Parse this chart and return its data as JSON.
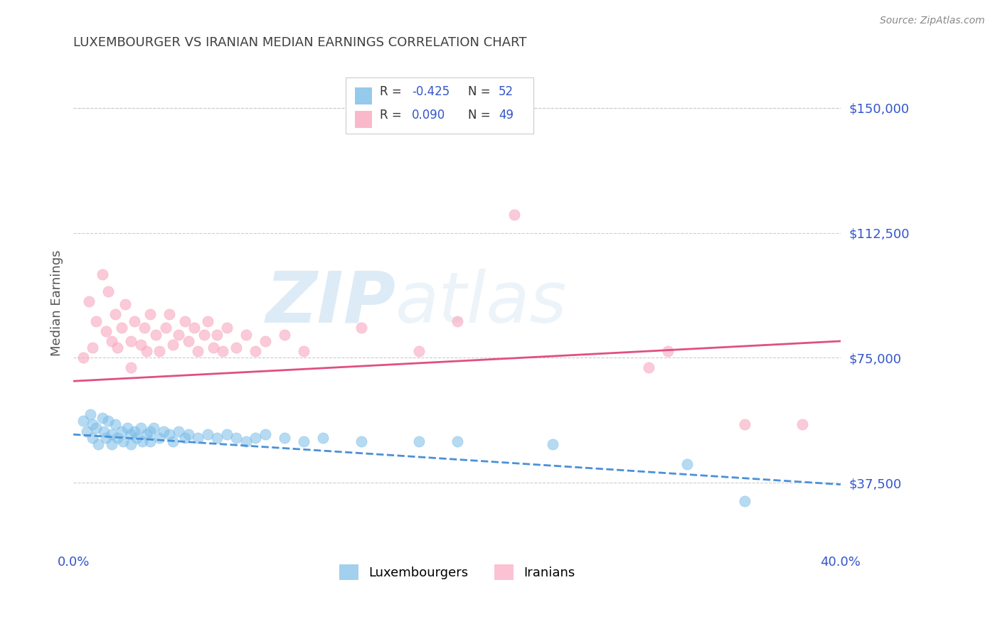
{
  "title": "LUXEMBOURGER VS IRANIAN MEDIAN EARNINGS CORRELATION CHART",
  "source": "Source: ZipAtlas.com",
  "ylabel": "Median Earnings",
  "xlim": [
    0.0,
    0.4
  ],
  "ylim": [
    18000,
    165000
  ],
  "yticks": [
    37500,
    75000,
    112500,
    150000
  ],
  "ytick_labels": [
    "$37,500",
    "$75,000",
    "$112,500",
    "$150,000"
  ],
  "legend_r_lux": "-0.425",
  "legend_n_lux": "52",
  "legend_r_iran": "0.090",
  "legend_n_iran": "49",
  "lux_color": "#7bbde8",
  "iran_color": "#f8a8bf",
  "lux_line_color": "#4a90d9",
  "iran_line_color": "#e05080",
  "background_color": "#ffffff",
  "grid_color": "#cccccc",
  "title_color": "#404040",
  "axis_label_color": "#555555",
  "tick_color": "#3355cc",
  "lux_trend": [
    0.0,
    52000,
    0.4,
    37000
  ],
  "iran_trend": [
    0.0,
    68000,
    0.4,
    80000
  ],
  "lux_scatter": [
    [
      0.005,
      56000
    ],
    [
      0.007,
      53000
    ],
    [
      0.009,
      58000
    ],
    [
      0.01,
      51000
    ],
    [
      0.01,
      55000
    ],
    [
      0.012,
      54000
    ],
    [
      0.013,
      49000
    ],
    [
      0.015,
      57000
    ],
    [
      0.016,
      53000
    ],
    [
      0.017,
      51000
    ],
    [
      0.018,
      56000
    ],
    [
      0.02,
      52000
    ],
    [
      0.02,
      49000
    ],
    [
      0.022,
      55000
    ],
    [
      0.023,
      51000
    ],
    [
      0.025,
      53000
    ],
    [
      0.026,
      50000
    ],
    [
      0.028,
      54000
    ],
    [
      0.03,
      52000
    ],
    [
      0.03,
      49000
    ],
    [
      0.032,
      53000
    ],
    [
      0.033,
      51000
    ],
    [
      0.035,
      54000
    ],
    [
      0.036,
      50000
    ],
    [
      0.038,
      52000
    ],
    [
      0.04,
      53000
    ],
    [
      0.04,
      50000
    ],
    [
      0.042,
      54000
    ],
    [
      0.045,
      51000
    ],
    [
      0.047,
      53000
    ],
    [
      0.05,
      52000
    ],
    [
      0.052,
      50000
    ],
    [
      0.055,
      53000
    ],
    [
      0.058,
      51000
    ],
    [
      0.06,
      52000
    ],
    [
      0.065,
      51000
    ],
    [
      0.07,
      52000
    ],
    [
      0.075,
      51000
    ],
    [
      0.08,
      52000
    ],
    [
      0.085,
      51000
    ],
    [
      0.09,
      50000
    ],
    [
      0.095,
      51000
    ],
    [
      0.1,
      52000
    ],
    [
      0.11,
      51000
    ],
    [
      0.12,
      50000
    ],
    [
      0.13,
      51000
    ],
    [
      0.15,
      50000
    ],
    [
      0.18,
      50000
    ],
    [
      0.2,
      50000
    ],
    [
      0.25,
      49000
    ],
    [
      0.32,
      43000
    ],
    [
      0.35,
      32000
    ]
  ],
  "iran_scatter": [
    [
      0.005,
      75000
    ],
    [
      0.008,
      92000
    ],
    [
      0.01,
      78000
    ],
    [
      0.012,
      86000
    ],
    [
      0.015,
      100000
    ],
    [
      0.017,
      83000
    ],
    [
      0.018,
      95000
    ],
    [
      0.02,
      80000
    ],
    [
      0.022,
      88000
    ],
    [
      0.023,
      78000
    ],
    [
      0.025,
      84000
    ],
    [
      0.027,
      91000
    ],
    [
      0.03,
      80000
    ],
    [
      0.03,
      72000
    ],
    [
      0.032,
      86000
    ],
    [
      0.035,
      79000
    ],
    [
      0.037,
      84000
    ],
    [
      0.038,
      77000
    ],
    [
      0.04,
      88000
    ],
    [
      0.043,
      82000
    ],
    [
      0.045,
      77000
    ],
    [
      0.048,
      84000
    ],
    [
      0.05,
      88000
    ],
    [
      0.052,
      79000
    ],
    [
      0.055,
      82000
    ],
    [
      0.058,
      86000
    ],
    [
      0.06,
      80000
    ],
    [
      0.063,
      84000
    ],
    [
      0.065,
      77000
    ],
    [
      0.068,
      82000
    ],
    [
      0.07,
      86000
    ],
    [
      0.073,
      78000
    ],
    [
      0.075,
      82000
    ],
    [
      0.078,
      77000
    ],
    [
      0.08,
      84000
    ],
    [
      0.085,
      78000
    ],
    [
      0.09,
      82000
    ],
    [
      0.095,
      77000
    ],
    [
      0.1,
      80000
    ],
    [
      0.11,
      82000
    ],
    [
      0.12,
      77000
    ],
    [
      0.15,
      84000
    ],
    [
      0.18,
      77000
    ],
    [
      0.2,
      86000
    ],
    [
      0.23,
      118000
    ],
    [
      0.3,
      72000
    ],
    [
      0.31,
      77000
    ],
    [
      0.35,
      55000
    ],
    [
      0.38,
      55000
    ]
  ]
}
